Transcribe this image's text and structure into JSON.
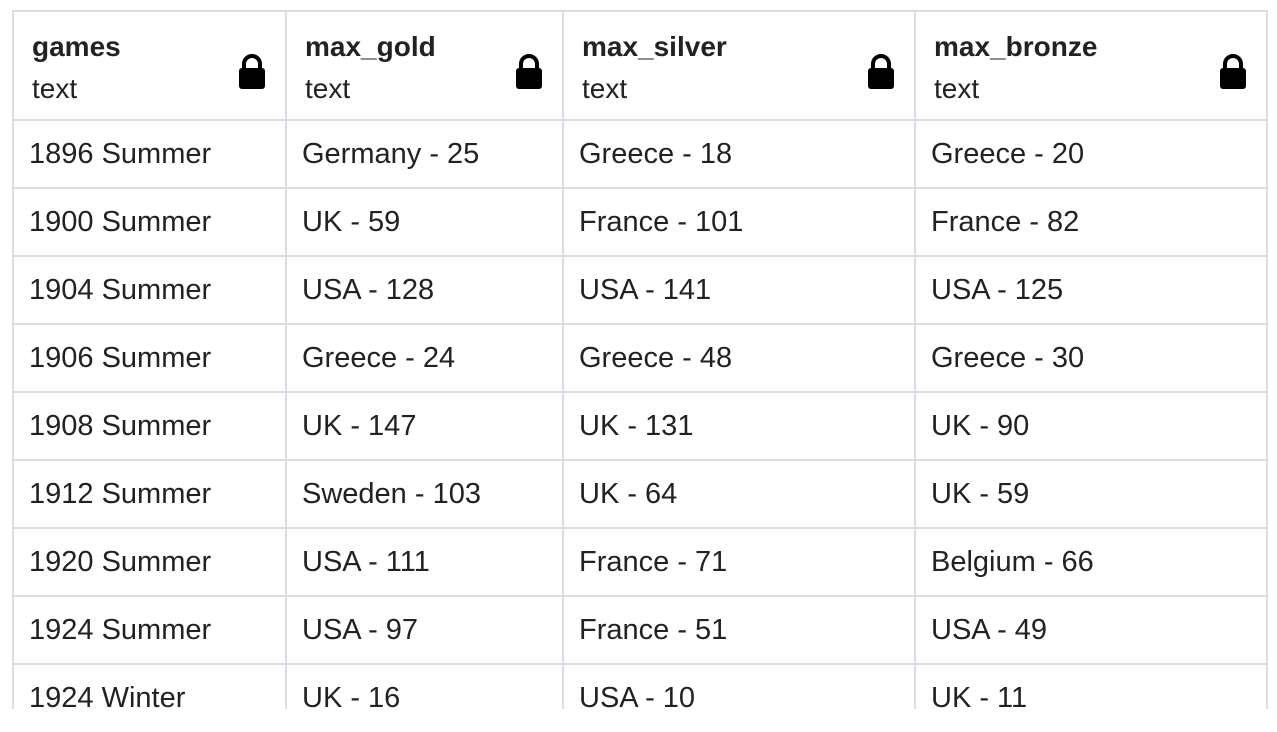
{
  "columns": [
    {
      "name": "games",
      "type": "text"
    },
    {
      "name": "max_gold",
      "type": "text"
    },
    {
      "name": "max_silver",
      "type": "text"
    },
    {
      "name": "max_bronze",
      "type": "text"
    }
  ],
  "rows": [
    [
      "1896 Summer",
      "Germany - 25",
      "Greece - 18",
      "Greece - 20"
    ],
    [
      "1900 Summer",
      "UK - 59",
      "France - 101",
      "France - 82"
    ],
    [
      "1904 Summer",
      "USA - 128",
      "USA - 141",
      "USA - 125"
    ],
    [
      "1906 Summer",
      "Greece - 24",
      "Greece - 48",
      "Greece - 30"
    ],
    [
      "1908 Summer",
      "UK - 147",
      "UK - 131",
      "UK - 90"
    ],
    [
      "1912 Summer",
      "Sweden - 103",
      "UK - 64",
      "UK - 59"
    ],
    [
      "1920 Summer",
      "USA - 111",
      "France - 71",
      "Belgium - 66"
    ],
    [
      "1924 Summer",
      "USA - 97",
      "France - 51",
      "USA - 49"
    ],
    [
      "1924 Winter",
      "UK - 16",
      "USA - 10",
      "UK - 11"
    ]
  ],
  "icons": {
    "column_header": "lock-icon"
  },
  "colors": {
    "grid_border": "#dcdde3",
    "text": "#222222",
    "background": "#ffffff"
  }
}
